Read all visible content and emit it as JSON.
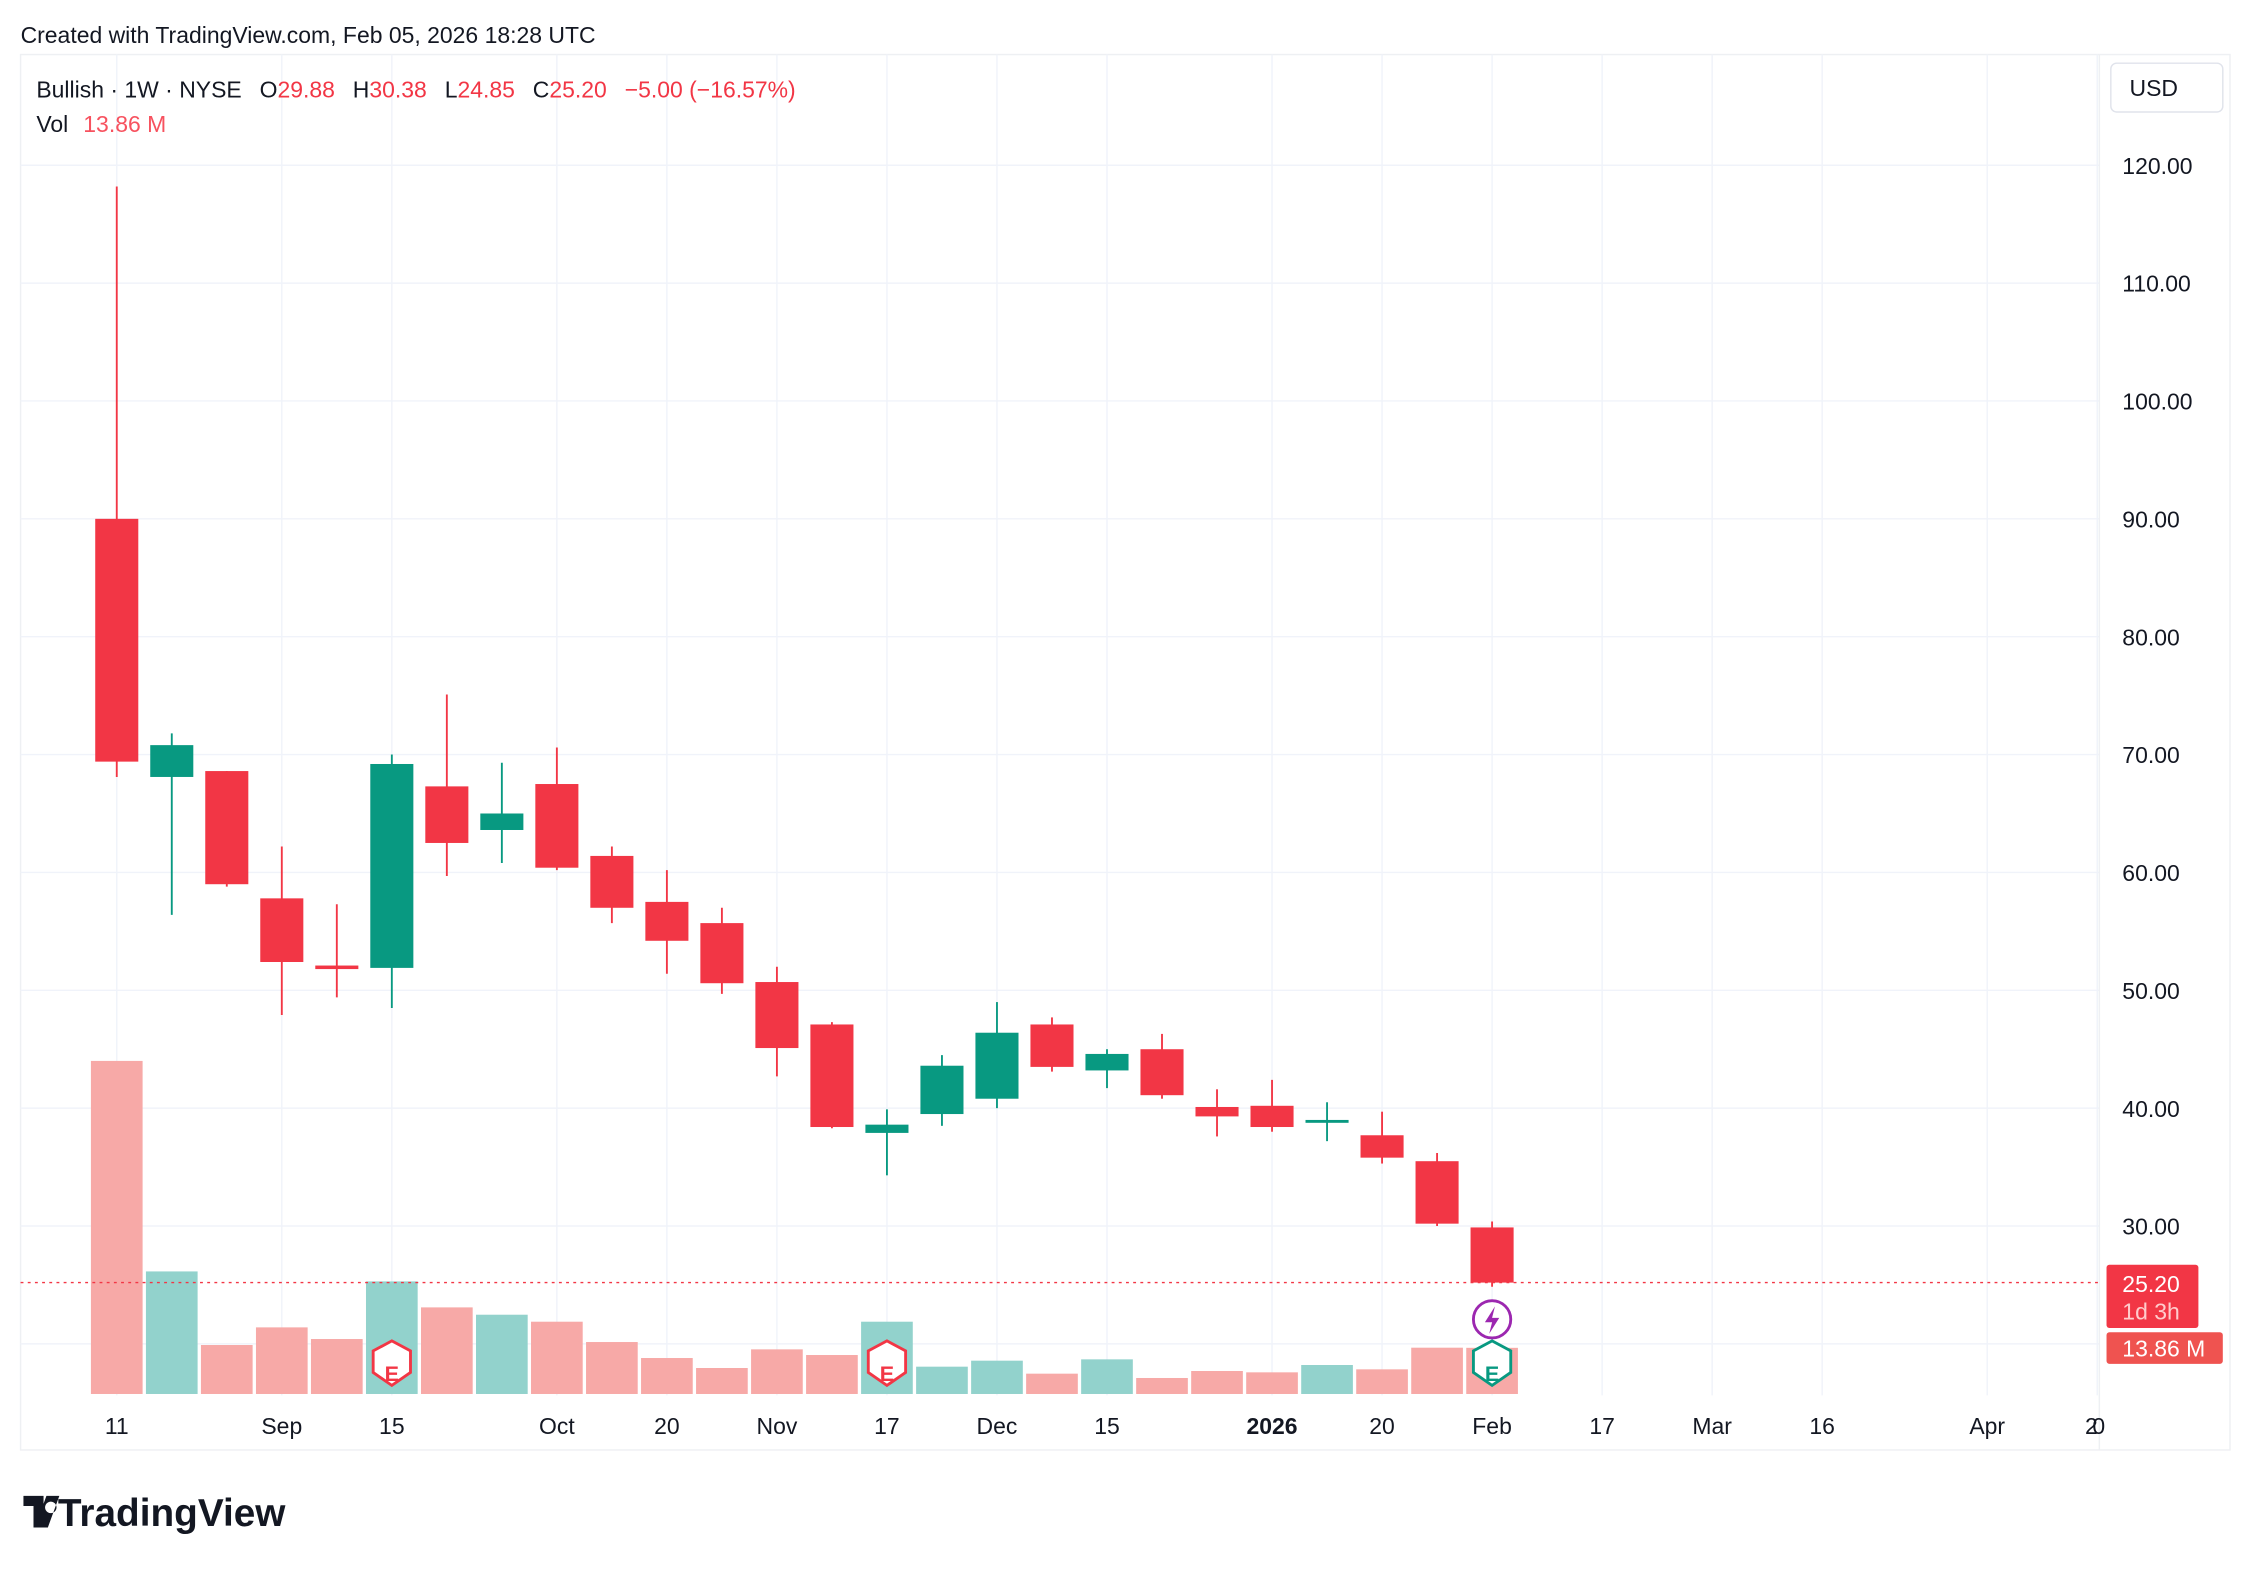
{
  "credit": "Created with TradingView.com, Feb 05, 2026 18:28 UTC",
  "legend": {
    "symbol": "Bullish · 1W · NYSE",
    "o_label": "O",
    "o_value": "29.88",
    "h_label": "H",
    "h_value": "30.38",
    "l_label": "L",
    "l_value": "24.85",
    "c_label": "C",
    "c_value": "25.20",
    "change": "−5.00 (−16.57%)",
    "vol_label": "Vol",
    "vol_value": "13.86 M"
  },
  "currency_button": "USD",
  "last_price": {
    "price": "25.20",
    "countdown": "1d 3h",
    "volume": "13.86 M"
  },
  "logo_text": "TradingView",
  "colors": {
    "up": "#089981",
    "down": "#F23645",
    "vol_up": "#92D2CC",
    "vol_down": "#F7A9A7",
    "grid": "#F0F3FA",
    "event": "#9C27B0"
  },
  "chart_data": {
    "type": "candlestick",
    "interval": "1W",
    "ylim": [
      15,
      125
    ],
    "y_ticks": [
      "30.00",
      "40.00",
      "50.00",
      "60.00",
      "70.00",
      "80.00",
      "90.00",
      "100.00",
      "110.00",
      "120.00"
    ],
    "x_ticks": [
      {
        "label": "11",
        "date": "2025-08-11"
      },
      {
        "label": "Sep",
        "date": "2025-09-01"
      },
      {
        "label": "15",
        "date": "2025-09-15"
      },
      {
        "label": "Oct",
        "date": "2025-10-06"
      },
      {
        "label": "20",
        "date": "2025-10-20"
      },
      {
        "label": "Nov",
        "date": "2025-11-03"
      },
      {
        "label": "17",
        "date": "2025-11-17"
      },
      {
        "label": "Dec",
        "date": "2025-12-01"
      },
      {
        "label": "15",
        "date": "2025-12-15"
      },
      {
        "label": "2026",
        "date": "2026-01-05",
        "bold": true
      },
      {
        "label": "20",
        "date": "2026-01-19"
      },
      {
        "label": "Feb",
        "date": "2026-02-02"
      },
      {
        "label": "17",
        "date": "2026-02-16"
      },
      {
        "label": "Mar",
        "date": "2026-03-02"
      },
      {
        "label": "16",
        "date": "2026-03-16"
      },
      {
        "label": "Apr",
        "date": "2026-04-06"
      },
      {
        "label": "20",
        "date": "2026-04-20"
      }
    ],
    "bars": [
      {
        "date": "2025-08-11",
        "o": 90.0,
        "h": 118.2,
        "l": 68.1,
        "c": 69.4,
        "v": 100.0
      },
      {
        "date": "2025-08-18",
        "o": 68.1,
        "h": 71.8,
        "l": 56.4,
        "c": 70.8,
        "v": 36.8
      },
      {
        "date": "2025-08-25",
        "o": 68.6,
        "h": 68.6,
        "l": 58.8,
        "c": 59.0,
        "v": 14.7
      },
      {
        "date": "2025-09-01",
        "o": 57.8,
        "h": 62.2,
        "l": 47.9,
        "c": 52.4,
        "v": 20.0
      },
      {
        "date": "2025-09-08",
        "o": 52.1,
        "h": 57.3,
        "l": 49.4,
        "c": 51.8,
        "v": 16.5
      },
      {
        "date": "2025-09-15",
        "o": 51.9,
        "h": 70.0,
        "l": 48.5,
        "c": 69.2,
        "v": 33.8
      },
      {
        "date": "2025-09-22",
        "o": 67.3,
        "h": 75.1,
        "l": 59.7,
        "c": 62.5,
        "v": 26.0
      },
      {
        "date": "2025-09-29",
        "o": 63.6,
        "h": 69.3,
        "l": 60.8,
        "c": 65.0,
        "v": 23.8
      },
      {
        "date": "2025-10-06",
        "o": 67.5,
        "h": 70.6,
        "l": 60.2,
        "c": 60.4,
        "v": 21.7
      },
      {
        "date": "2025-10-13",
        "o": 61.4,
        "h": 62.2,
        "l": 55.7,
        "c": 57.0,
        "v": 15.6
      },
      {
        "date": "2025-10-20",
        "o": 57.5,
        "h": 60.2,
        "l": 51.4,
        "c": 54.2,
        "v": 10.8
      },
      {
        "date": "2025-10-27",
        "o": 55.7,
        "h": 57.0,
        "l": 49.7,
        "c": 50.6,
        "v": 7.8
      },
      {
        "date": "2025-11-03",
        "o": 50.7,
        "h": 52.0,
        "l": 42.7,
        "c": 45.1,
        "v": 13.4
      },
      {
        "date": "2025-11-10",
        "o": 47.1,
        "h": 47.3,
        "l": 38.3,
        "c": 38.4,
        "v": 11.7
      },
      {
        "date": "2025-11-17",
        "o": 37.9,
        "h": 39.9,
        "l": 34.3,
        "c": 38.6,
        "v": 21.7
      },
      {
        "date": "2025-11-24",
        "o": 39.5,
        "h": 44.5,
        "l": 38.5,
        "c": 43.6,
        "v": 8.2
      },
      {
        "date": "2025-12-01",
        "o": 40.8,
        "h": 49.0,
        "l": 40.0,
        "c": 46.4,
        "v": 10.0
      },
      {
        "date": "2025-12-08",
        "o": 47.1,
        "h": 47.7,
        "l": 43.1,
        "c": 43.5,
        "v": 6.1
      },
      {
        "date": "2025-12-15",
        "o": 43.2,
        "h": 45.0,
        "l": 41.7,
        "c": 44.6,
        "v": 10.4
      },
      {
        "date": "2025-12-22",
        "o": 45.0,
        "h": 46.3,
        "l": 40.8,
        "c": 41.1,
        "v": 4.8
      },
      {
        "date": "2025-12-29",
        "o": 40.1,
        "h": 41.6,
        "l": 37.6,
        "c": 39.3,
        "v": 6.9
      },
      {
        "date": "2026-01-05",
        "o": 40.2,
        "h": 42.4,
        "l": 38.0,
        "c": 38.4,
        "v": 6.5
      },
      {
        "date": "2026-01-12",
        "o": 38.9,
        "h": 40.5,
        "l": 37.2,
        "c": 39.0,
        "v": 8.7
      },
      {
        "date": "2026-01-19",
        "o": 37.7,
        "h": 39.7,
        "l": 35.3,
        "c": 35.8,
        "v": 7.4
      },
      {
        "date": "2026-01-26",
        "o": 35.5,
        "h": 36.2,
        "l": 30.0,
        "c": 30.2,
        "v": 13.9
      },
      {
        "date": "2026-02-02",
        "o": 29.88,
        "h": 30.38,
        "l": 24.85,
        "c": 25.2,
        "v": 13.86
      }
    ],
    "earnings_markers": [
      {
        "date": "2025-09-15",
        "label": "E",
        "status": "past"
      },
      {
        "date": "2025-11-17",
        "label": "E",
        "status": "past"
      },
      {
        "date": "2026-02-02",
        "label": "E",
        "status": "upcoming"
      }
    ],
    "event_markers": [
      {
        "date": "2026-02-02",
        "icon": "lightning-icon"
      }
    ],
    "last_price_line": 25.2
  }
}
